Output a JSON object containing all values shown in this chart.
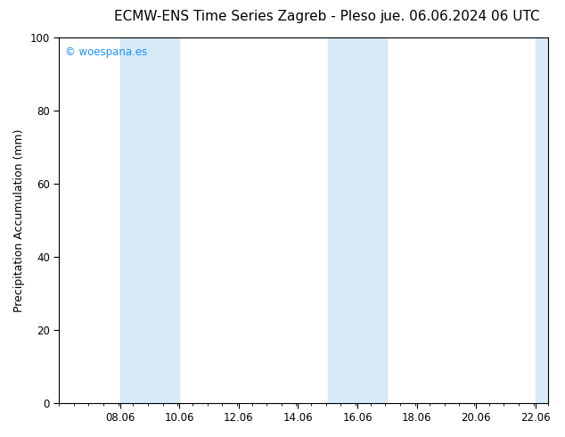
{
  "title_left": "ECMW-ENS Time Series Zagreb - Pleso",
  "title_right": "jue. 06.06.2024 06 UTC",
  "ylabel": "Precipitation Accumulation (mm)",
  "xlim_start": 6.0,
  "xlim_end": 22.5,
  "ylim": [
    0,
    100
  ],
  "yticks": [
    0,
    20,
    40,
    60,
    80,
    100
  ],
  "xtick_labels": [
    "08.06",
    "10.06",
    "12.06",
    "14.06",
    "16.06",
    "18.06",
    "20.06",
    "22.06"
  ],
  "xtick_positions": [
    8.06,
    10.06,
    12.06,
    14.06,
    16.06,
    18.06,
    20.06,
    22.06
  ],
  "shaded_bands": [
    {
      "x_start": 8.06,
      "x_end": 10.06
    },
    {
      "x_start": 15.06,
      "x_end": 17.06
    },
    {
      "x_start": 22.06,
      "x_end": 22.5
    }
  ],
  "band_color": "#d6eaf8",
  "background_color": "#ffffff",
  "watermark_text": "© woespana.es",
  "watermark_color": "#1e90ff",
  "title_fontsize": 11,
  "ylabel_fontsize": 9,
  "tick_fontsize": 8.5
}
